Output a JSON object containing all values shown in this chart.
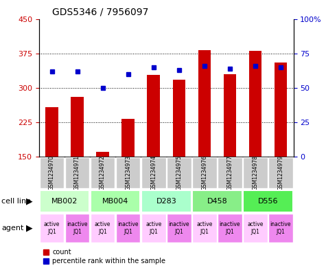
{
  "title": "GDS5346 / 7956097",
  "samples": [
    "GSM1234970",
    "GSM1234971",
    "GSM1234972",
    "GSM1234973",
    "GSM1234974",
    "GSM1234975",
    "GSM1234976",
    "GSM1234977",
    "GSM1234978",
    "GSM1234979"
  ],
  "counts": [
    258,
    280,
    160,
    232,
    328,
    318,
    382,
    330,
    380,
    355
  ],
  "percentiles": [
    62,
    62,
    50,
    60,
    65,
    63,
    66,
    64,
    66,
    65
  ],
  "ylim_left": [
    150,
    450
  ],
  "ylim_right": [
    0,
    100
  ],
  "yticks_left": [
    150,
    225,
    300,
    375,
    450
  ],
  "yticks_right": [
    0,
    25,
    50,
    75,
    100
  ],
  "cell_lines": [
    {
      "label": "MB002",
      "cols": [
        0,
        1
      ],
      "color": "#ccffcc"
    },
    {
      "label": "MB004",
      "cols": [
        2,
        3
      ],
      "color": "#aaffaa"
    },
    {
      "label": "D283",
      "cols": [
        4,
        5
      ],
      "color": "#aaffcc"
    },
    {
      "label": "D458",
      "cols": [
        6,
        7
      ],
      "color": "#88ee88"
    },
    {
      "label": "D556",
      "cols": [
        8,
        9
      ],
      "color": "#55ee55"
    }
  ],
  "agents": [
    "active\nJQ1",
    "inactive\nJQ1",
    "active\nJQ1",
    "inactive\nJQ1",
    "active\nJQ1",
    "inactive\nJQ1",
    "active\nJQ1",
    "inactive\nJQ1",
    "active\nJQ1",
    "inactive\nJQ1"
  ],
  "agent_colors": [
    "#ffccff",
    "#ee88ee",
    "#ffccff",
    "#ee88ee",
    "#ffccff",
    "#ee88ee",
    "#ffccff",
    "#ee88ee",
    "#ffccff",
    "#ee88ee"
  ],
  "bar_color": "#cc0000",
  "dot_color": "#0000cc",
  "grid_color": "#000000",
  "bg_color": "#ffffff",
  "left_label_color": "#cc0000",
  "right_label_color": "#0000cc",
  "sample_bg_color": "#cccccc"
}
